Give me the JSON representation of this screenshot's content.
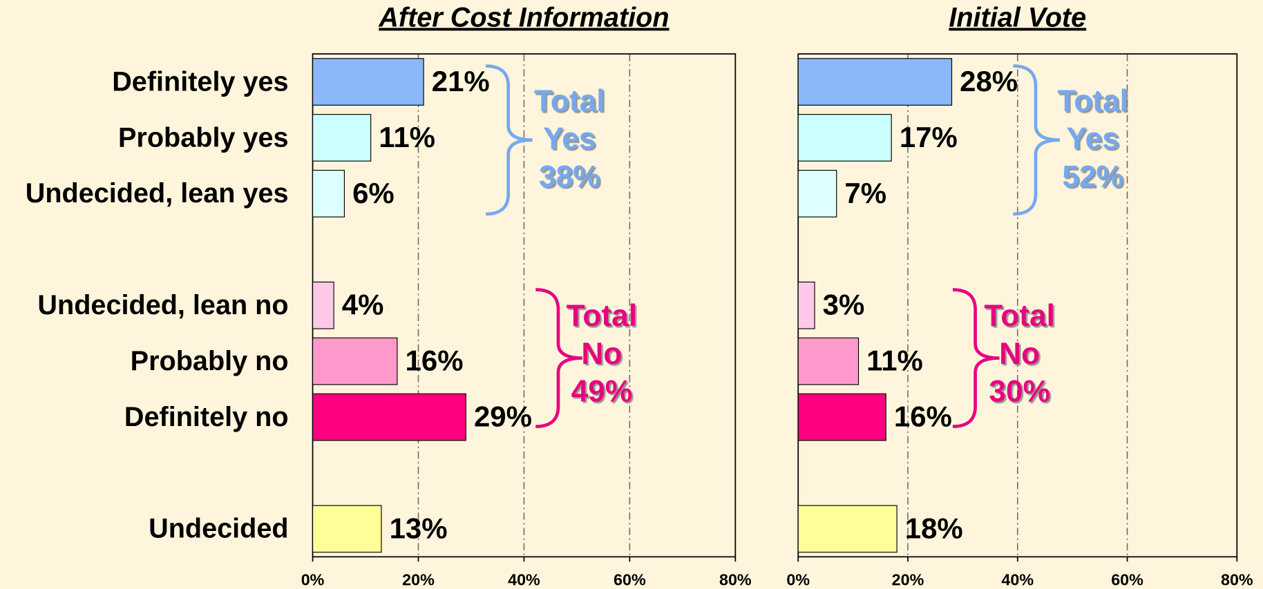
{
  "chart_data": [
    {
      "type": "bar",
      "orientation": "horizontal",
      "title": "After Cost Information",
      "categories": [
        "Definitely yes",
        "Probably yes",
        "Undecided, lean yes",
        "Undecided, lean no",
        "Probably no",
        "Definitely no",
        "Undecided"
      ],
      "values": [
        21,
        11,
        6,
        4,
        16,
        29,
        13
      ],
      "value_labels": [
        "21%",
        "11%",
        "6%",
        "4%",
        "16%",
        "29%",
        "13%"
      ],
      "colors": [
        "#8ab8f8",
        "#ccffff",
        "#ddffff",
        "#ffc8e8",
        "#ff99cc",
        "#ff0080",
        "#ffff99"
      ],
      "xlim": [
        0,
        80
      ],
      "xticks": [
        {
          "value": 0,
          "label": "0%"
        },
        {
          "value": 20,
          "label": "20%"
        },
        {
          "value": 40,
          "label": "40%"
        },
        {
          "value": 60,
          "label": "60%"
        },
        {
          "value": 80,
          "label": "80%"
        }
      ],
      "grid": true,
      "annotations": [
        {
          "lines": [
            "Total",
            "Yes",
            "38%"
          ],
          "color": "#74a9ef"
        },
        {
          "lines": [
            "Total",
            "No",
            "49%"
          ],
          "color": "#e8007f"
        }
      ]
    },
    {
      "type": "bar",
      "orientation": "horizontal",
      "title": "Initial Vote",
      "values": [
        28,
        17,
        7,
        3,
        11,
        16,
        18
      ],
      "value_labels": [
        "28%",
        "17%",
        "7%",
        "3%",
        "11%",
        "16%",
        "18%"
      ],
      "colors": [
        "#8ab8f8",
        "#ccffff",
        "#ddffff",
        "#ffc8e8",
        "#ff99cc",
        "#ff0080",
        "#ffff99"
      ],
      "xlim": [
        0,
        80
      ],
      "xticks": [
        {
          "value": 0,
          "label": "0%"
        },
        {
          "value": 20,
          "label": "20%"
        },
        {
          "value": 40,
          "label": "40%"
        },
        {
          "value": 60,
          "label": "60%"
        },
        {
          "value": 80,
          "label": "80%"
        }
      ],
      "grid": true,
      "annotations": [
        {
          "lines": [
            "Total",
            "Yes",
            "52%"
          ],
          "color": "#74a9ef"
        },
        {
          "lines": [
            "Total",
            "No",
            "30%"
          ],
          "color": "#e8007f"
        }
      ]
    }
  ]
}
